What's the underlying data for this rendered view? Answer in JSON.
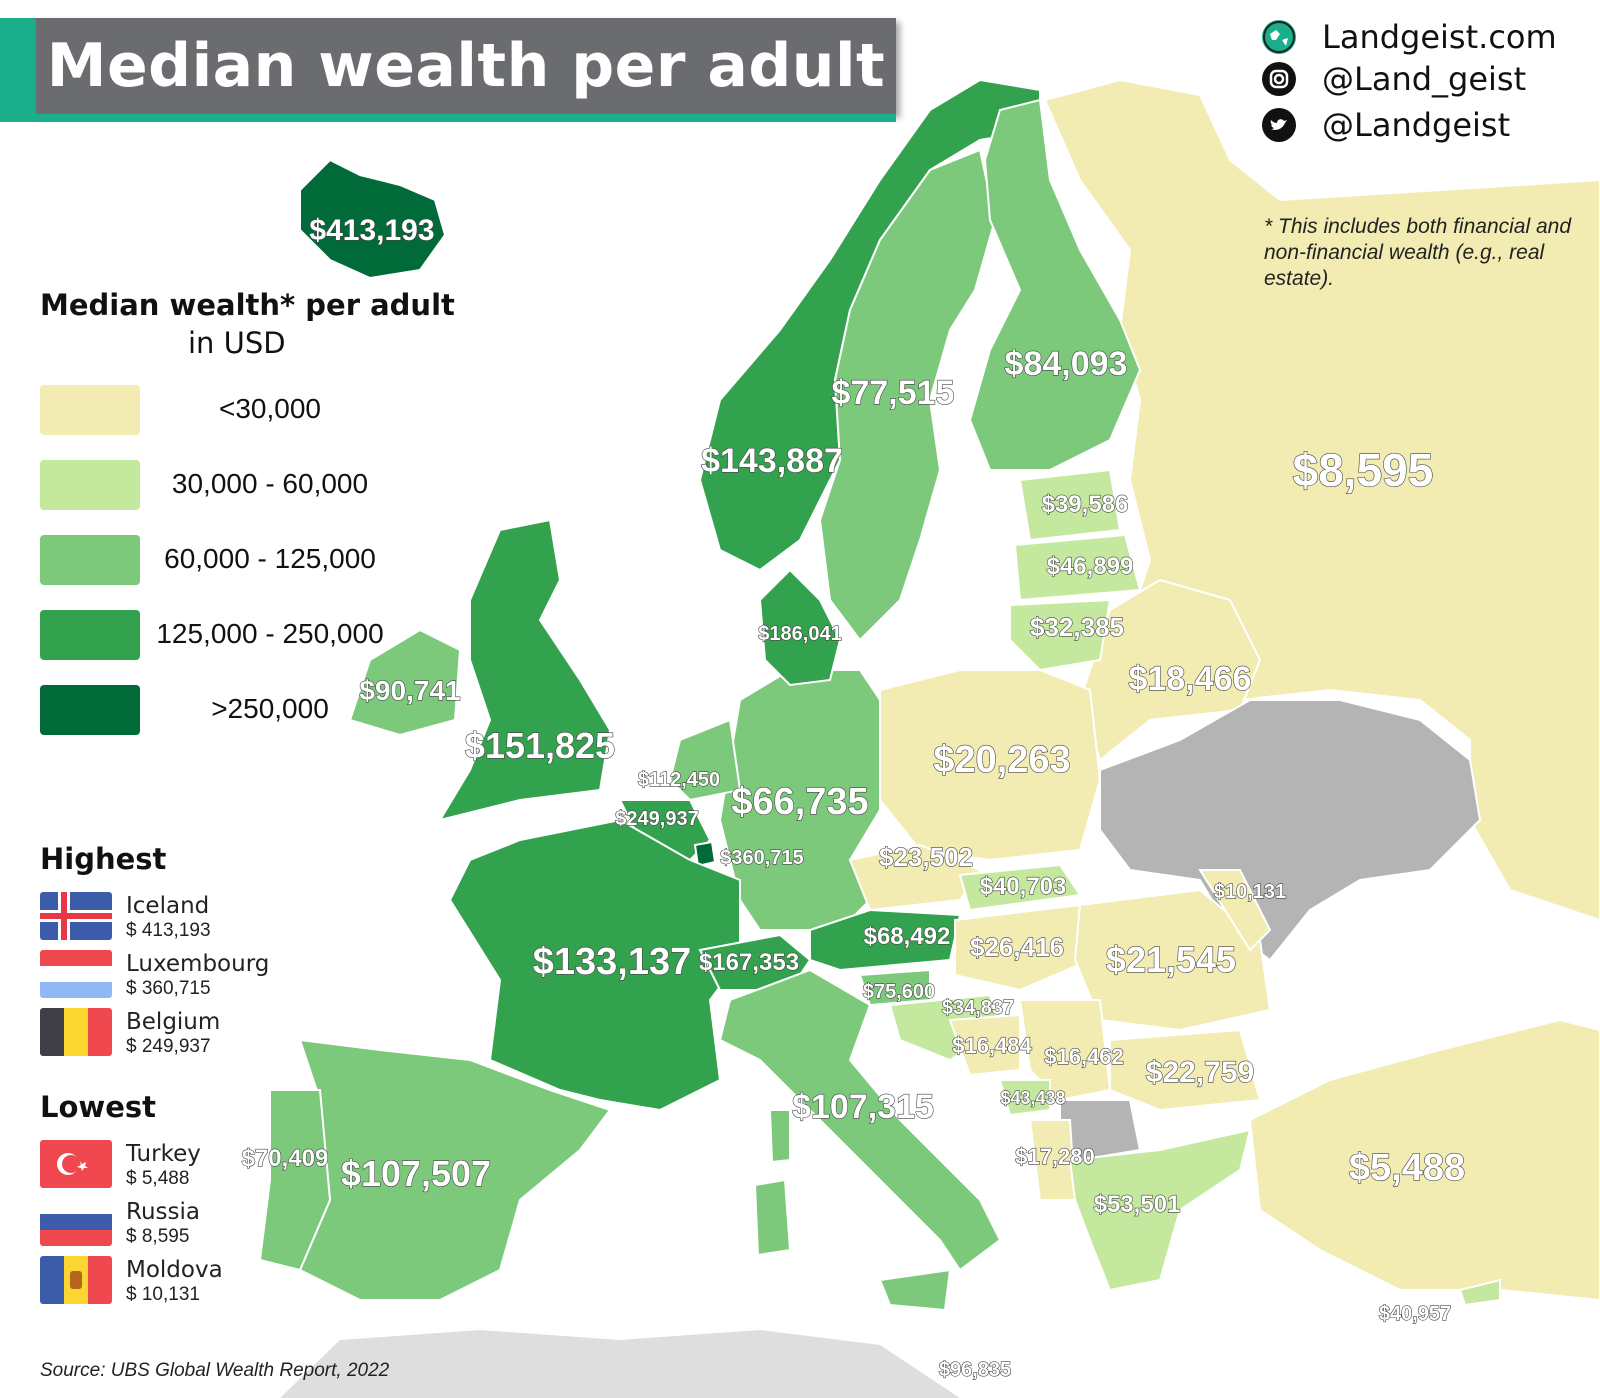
{
  "title": "Median wealth per adult",
  "brand": {
    "website": "Landgeist.com",
    "instagram": "@Land_geist",
    "twitter": "@Landgeist",
    "icons": [
      "globe-icon",
      "instagram-icon",
      "twitter-icon"
    ]
  },
  "note": "* This includes both financial and non-financial wealth (e.g., real estate).",
  "legend": {
    "title": "Median wealth* per adult",
    "subtitle": "in USD",
    "bins": [
      {
        "label": "<30,000",
        "color": "#f2ecb3"
      },
      {
        "label": "30,000 - 60,000",
        "color": "#c4e89e"
      },
      {
        "label": "60,000 - 125,000",
        "color": "#7cc97b"
      },
      {
        "label": "125,000 - 250,000",
        "color": "#33a24f"
      },
      {
        "label": ">250,000",
        "color": "#006b38"
      }
    ],
    "no_data_color": "#b4b4b4"
  },
  "highest": {
    "heading": "Highest",
    "items": [
      {
        "name": "Iceland",
        "value": "$ 413,193",
        "flag": "iceland-flag"
      },
      {
        "name": "Luxembourg",
        "value": "$ 360,715",
        "flag": "luxembourg-flag"
      },
      {
        "name": "Belgium",
        "value": "$ 249,937",
        "flag": "belgium-flag"
      }
    ]
  },
  "lowest": {
    "heading": "Lowest",
    "items": [
      {
        "name": "Turkey",
        "value": "$ 5,488",
        "flag": "turkey-flag"
      },
      {
        "name": "Russia",
        "value": "$ 8,595",
        "flag": "russia-flag"
      },
      {
        "name": "Moldova",
        "value": "$ 10,131",
        "flag": "moldova-flag"
      }
    ]
  },
  "source": "Source: UBS Global Wealth Report, 2022",
  "map_labels": [
    {
      "country": "Iceland",
      "value": 413193,
      "text": "$413,193"
    },
    {
      "country": "Norway",
      "value": 143887,
      "text": "$143,887"
    },
    {
      "country": "Sweden",
      "value": 77515,
      "text": "$77,515"
    },
    {
      "country": "Finland",
      "value": 84093,
      "text": "$84,093"
    },
    {
      "country": "Russia",
      "value": 8595,
      "text": "$8,595"
    },
    {
      "country": "Estonia",
      "value": 39586,
      "text": "$39,586"
    },
    {
      "country": "Latvia",
      "value": 46899,
      "text": "$46,899"
    },
    {
      "country": "Lithuania",
      "value": 32385,
      "text": "$32,385"
    },
    {
      "country": "Belarus",
      "value": 18466,
      "text": "$18,466"
    },
    {
      "country": "Denmark",
      "value": 186041,
      "text": "$186,041"
    },
    {
      "country": "Ireland",
      "value": 90741,
      "text": "$90,741"
    },
    {
      "country": "United Kingdom",
      "value": 151825,
      "text": "$151,825"
    },
    {
      "country": "Netherlands",
      "value": 112450,
      "text": "$112,450"
    },
    {
      "country": "Belgium",
      "value": 249937,
      "text": "$249,937"
    },
    {
      "country": "Luxembourg",
      "value": 360715,
      "text": "$360,715"
    },
    {
      "country": "Germany",
      "value": 66735,
      "text": "$66,735"
    },
    {
      "country": "Poland",
      "value": 20263,
      "text": "$20,263"
    },
    {
      "country": "Czechia",
      "value": 23502,
      "text": "$23,502"
    },
    {
      "country": "Slovakia",
      "value": 40703,
      "text": "$40,703"
    },
    {
      "country": "Moldova",
      "value": 10131,
      "text": "$10,131"
    },
    {
      "country": "France",
      "value": 133137,
      "text": "$133,137"
    },
    {
      "country": "Switzerland",
      "value": 167353,
      "text": "$167,353"
    },
    {
      "country": "Austria",
      "value": 68492,
      "text": "$68,492"
    },
    {
      "country": "Hungary",
      "value": 26416,
      "text": "$26,416"
    },
    {
      "country": "Romania",
      "value": 21545,
      "text": "$21,545"
    },
    {
      "country": "Slovenia",
      "value": 75600,
      "text": "$75,600"
    },
    {
      "country": "Croatia",
      "value": 34837,
      "text": "$34,837"
    },
    {
      "country": "Bosnia and Herzegovina",
      "value": 16484,
      "text": "$16,484"
    },
    {
      "country": "Serbia",
      "value": 16462,
      "text": "$16,462"
    },
    {
      "country": "Bulgaria",
      "value": 22759,
      "text": "$22,759"
    },
    {
      "country": "Montenegro",
      "value": 43438,
      "text": "$43,438"
    },
    {
      "country": "Albania",
      "value": 17280,
      "text": "$17,280"
    },
    {
      "country": "Italy",
      "value": 107315,
      "text": "$107,315"
    },
    {
      "country": "Greece",
      "value": 53501,
      "text": "$53,501"
    },
    {
      "country": "Turkey",
      "value": 5488,
      "text": "$5,488"
    },
    {
      "country": "Portugal",
      "value": 70409,
      "text": "$70,409"
    },
    {
      "country": "Spain",
      "value": 107507,
      "text": "$107,507"
    },
    {
      "country": "Cyprus",
      "value": 40957,
      "text": "$40,957"
    },
    {
      "country": "Malta",
      "value": 96835,
      "text": "$96,835"
    }
  ]
}
